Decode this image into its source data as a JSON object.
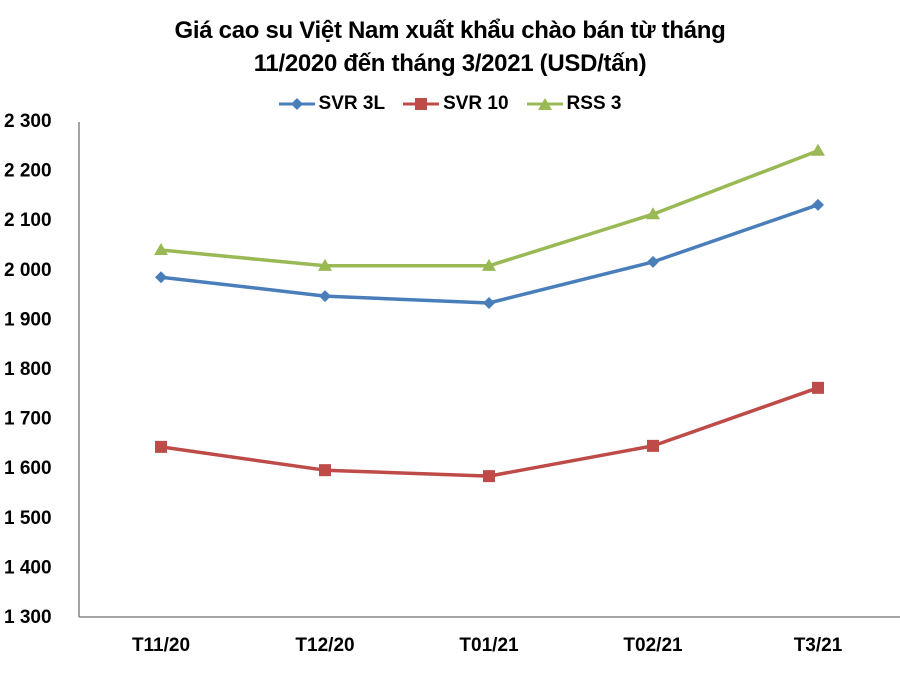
{
  "title_line1": "Giá cao su Việt Nam xuất khẩu chào bán từ tháng",
  "title_line2": "11/2020 đến tháng 3/2021 (USD/tấn)",
  "legend": [
    {
      "label": "SVR 3L",
      "color": "#4A7EBB",
      "marker": "diamond"
    },
    {
      "label": "SVR 10",
      "color": "#BE4B48",
      "marker": "square"
    },
    {
      "label": "RSS 3",
      "color": "#98B954",
      "marker": "triangle"
    }
  ],
  "y_ticks": [
    "2 300",
    "2 200",
    "2 100",
    "2 000",
    "1 900",
    "1 800",
    "1 700",
    "1 600",
    "1 500",
    "1 400",
    "1 300"
  ],
  "x_ticks": [
    "T11/20",
    "T12/20",
    "T01/21",
    "T02/21",
    "T3/21"
  ],
  "chart_data": {
    "type": "line",
    "title": "Giá cao su Việt Nam xuất khẩu chào bán từ tháng 11/2020 đến tháng 3/2021 (USD/tấn)",
    "xlabel": "",
    "ylabel": "",
    "categories": [
      "T11/20",
      "T12/20",
      "T01/21",
      "T02/21",
      "T3/21"
    ],
    "series": [
      {
        "name": "SVR 3L",
        "color": "#4A7EBB",
        "marker": "diamond",
        "values": [
          1983,
          1945,
          1931,
          2014,
          2129
        ]
      },
      {
        "name": "SVR 10",
        "color": "#BE4B48",
        "marker": "square",
        "values": [
          1641,
          1594,
          1582,
          1643,
          1760
        ]
      },
      {
        "name": "RSS 3",
        "color": "#98B954",
        "marker": "triangle",
        "values": [
          2038,
          2006,
          2006,
          2110,
          2238
        ]
      }
    ],
    "ylim": [
      1300,
      2300
    ],
    "y_tick_step": 100,
    "grid": false,
    "legend_position": "top"
  }
}
